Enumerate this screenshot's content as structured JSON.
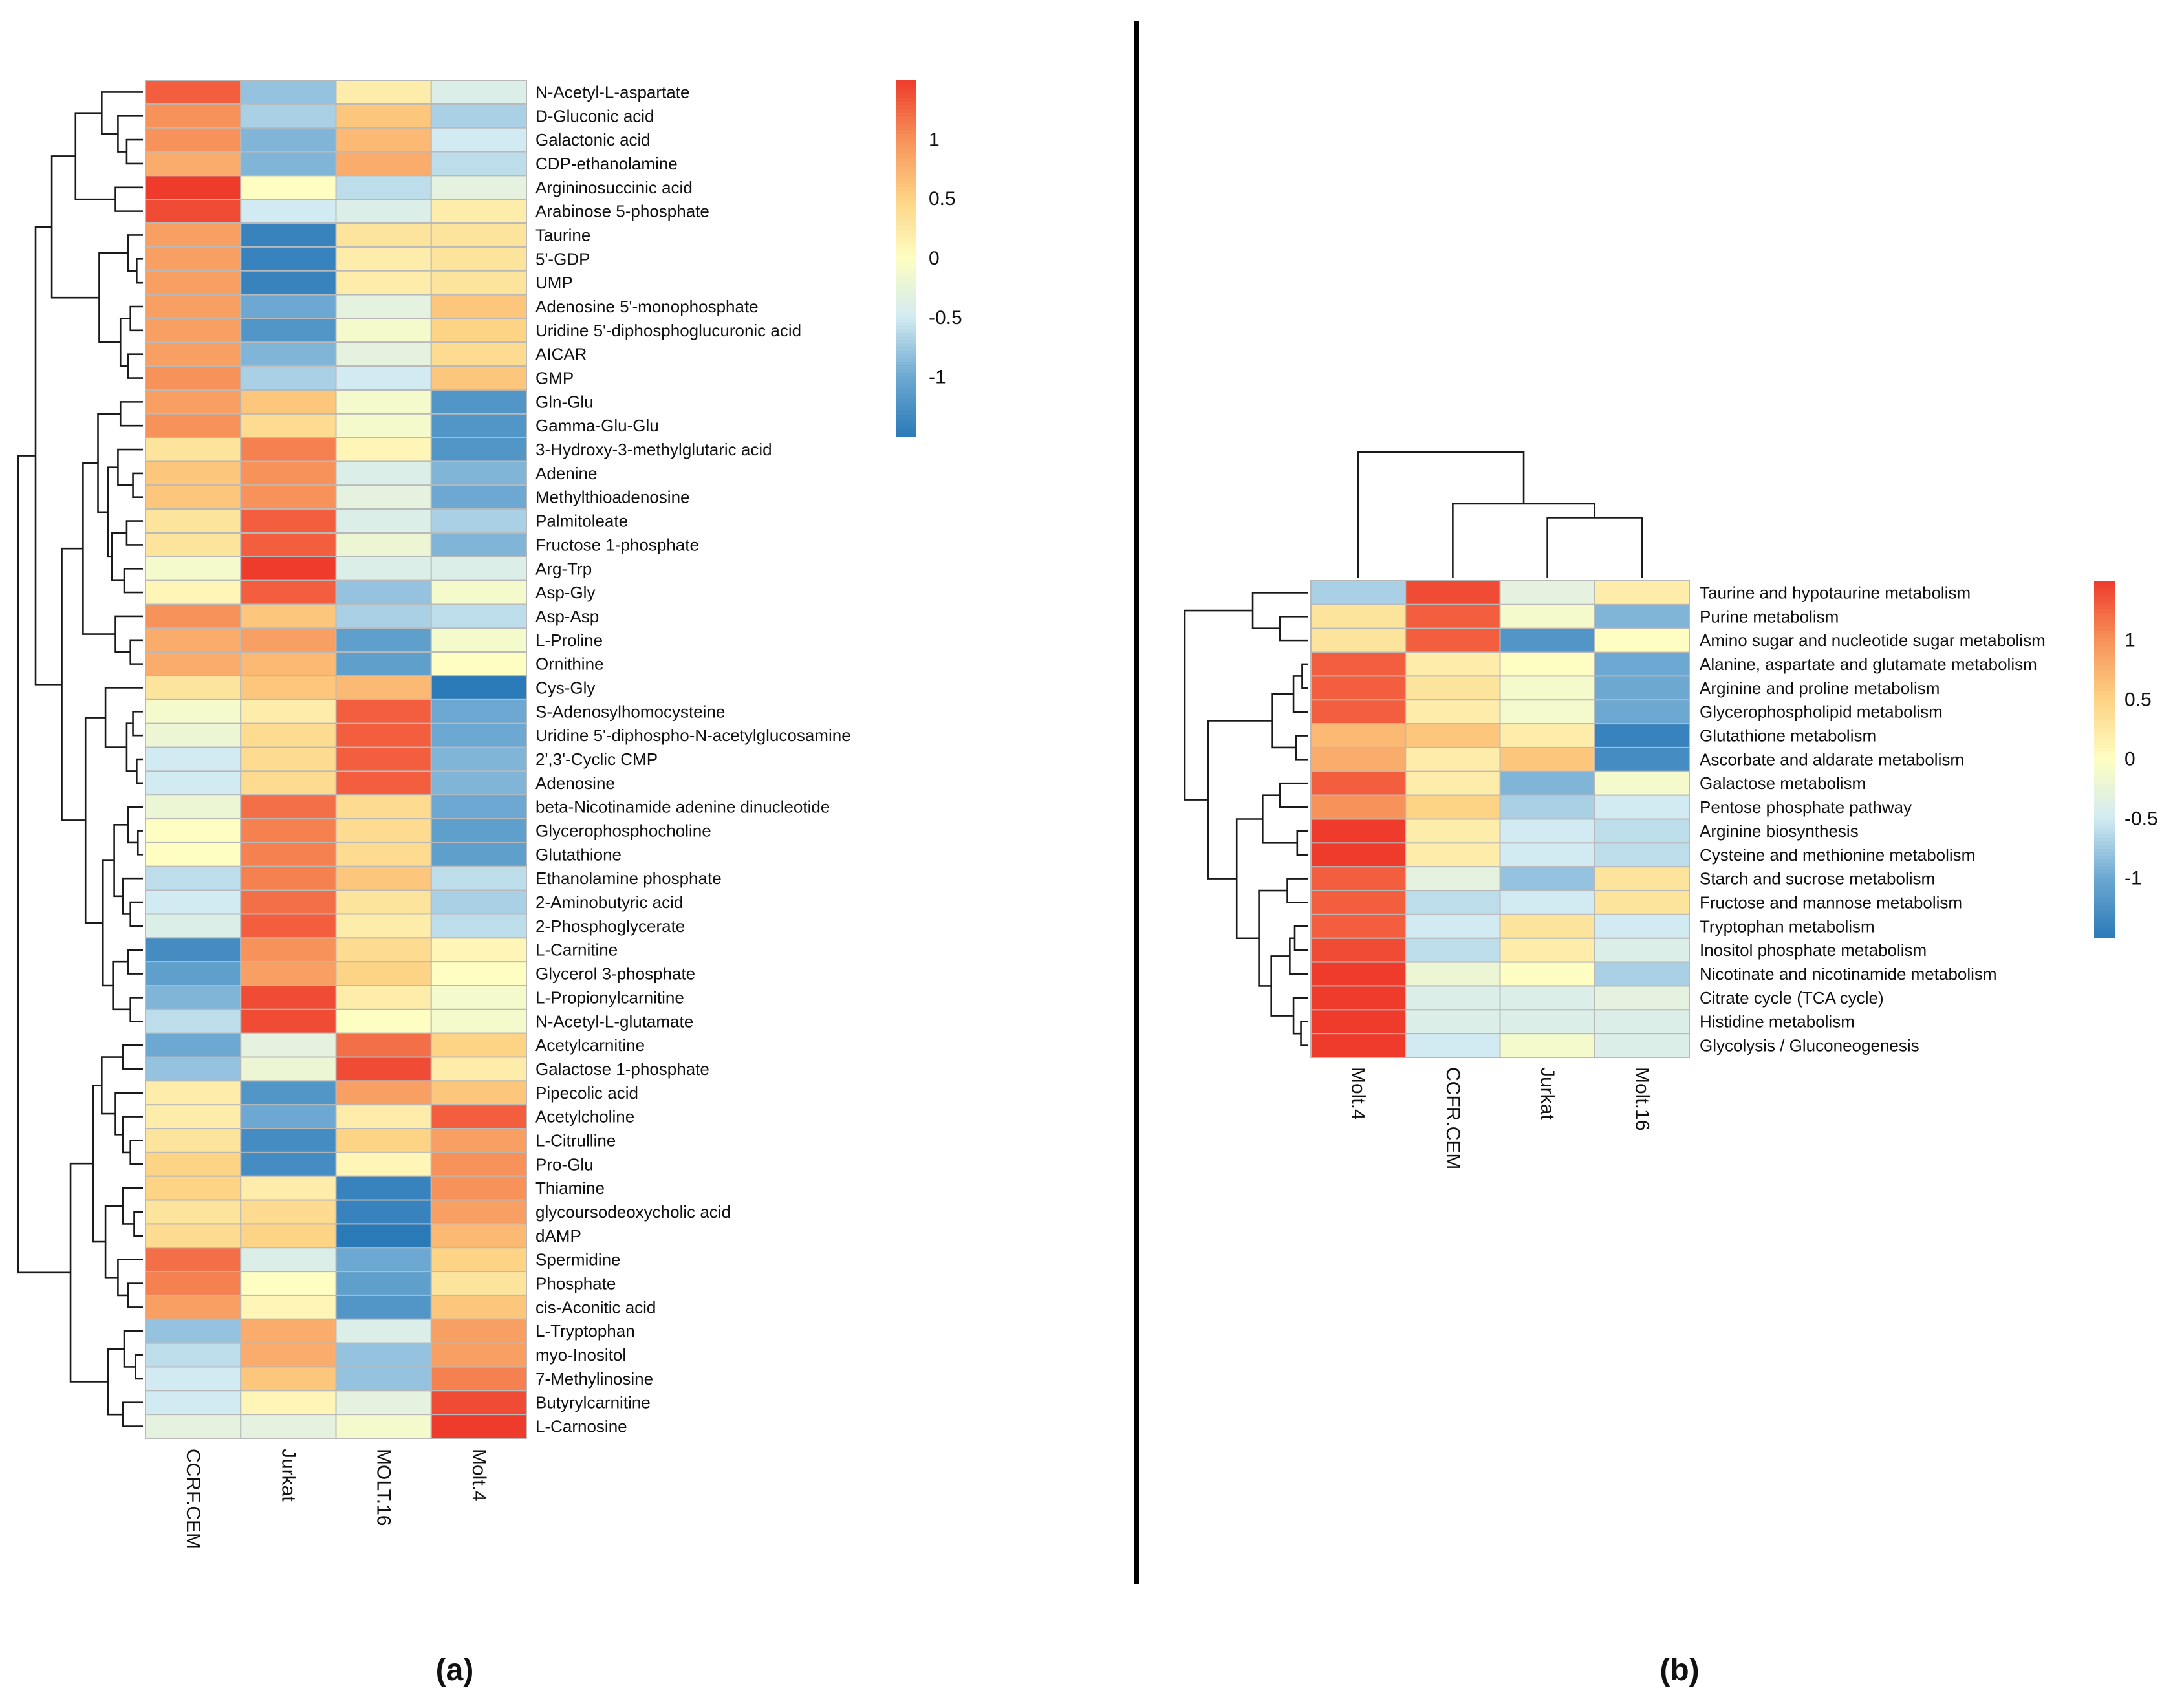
{
  "chart_data": [
    {
      "type": "heatmap",
      "panel_label": "(a)",
      "columns": [
        "CCRF.CEM",
        "Jurkat",
        "MOLT.16",
        "Molt.4"
      ],
      "rows": [
        "N-Acetyl-L-aspartate",
        "D-Gluconic acid",
        "Galactonic acid",
        "CDP-ethanolamine",
        "Argininosuccinic acid",
        "Arabinose 5-phosphate",
        "Taurine",
        "5'-GDP",
        "UMP",
        "Adenosine 5'-monophosphate",
        "Uridine 5'-diphosphoglucuronic acid",
        "AICAR",
        "GMP",
        "Gln-Glu",
        "Gamma-Glu-Glu",
        "3-Hydroxy-3-methylglutaric acid",
        "Adenine",
        "Methylthioadenosine",
        "Palmitoleate",
        "Fructose 1-phosphate",
        "Arg-Trp",
        "Asp-Gly",
        "Asp-Asp",
        "L-Proline",
        "Ornithine",
        "Cys-Gly",
        "S-Adenosylhomocysteine",
        "Uridine 5'-diphospho-N-acetylglucosamine",
        "2',3'-Cyclic CMP",
        "Adenosine",
        "beta-Nicotinamide adenine dinucleotide",
        "Glycerophosphocholine",
        "Glutathione",
        "Ethanolamine phosphate",
        "2-Aminobutyric acid",
        "2-Phosphoglycerate",
        "L-Carnitine",
        "Glycerol 3-phosphate",
        "L-Propionylcarnitine",
        "N-Acetyl-L-glutamate",
        "Acetylcarnitine",
        "Galactose 1-phosphate",
        "Pipecolic acid",
        "Acetylcholine",
        "L-Citrulline",
        "Pro-Glu",
        "Thiamine",
        "glycoursodeoxycholic acid",
        "dAMP",
        "Spermidine",
        "Phosphate",
        "cis-Aconitic acid",
        "L-Tryptophan",
        "myo-Inositol",
        "7-Methylinosine",
        "Butyrylcarnitine",
        "L-Carnosine"
      ],
      "values": [
        [
          1.3,
          -0.8,
          0.2,
          -0.4
        ],
        [
          1.0,
          -0.7,
          0.6,
          -0.7
        ],
        [
          1.0,
          -0.9,
          0.7,
          -0.5
        ],
        [
          0.8,
          -0.9,
          0.8,
          -0.6
        ],
        [
          1.5,
          0.0,
          -0.6,
          -0.3
        ],
        [
          1.4,
          -0.5,
          -0.4,
          0.2
        ],
        [
          0.9,
          -1.4,
          0.3,
          0.3
        ],
        [
          0.9,
          -1.4,
          0.2,
          0.3
        ],
        [
          0.9,
          -1.4,
          0.2,
          0.3
        ],
        [
          0.9,
          -1.0,
          -0.3,
          0.6
        ],
        [
          0.9,
          -1.2,
          -0.1,
          0.5
        ],
        [
          0.9,
          -0.9,
          -0.3,
          0.4
        ],
        [
          1.0,
          -0.7,
          -0.5,
          0.6
        ],
        [
          0.9,
          0.6,
          -0.1,
          -1.2
        ],
        [
          1.0,
          0.4,
          -0.1,
          -1.2
        ],
        [
          0.3,
          1.1,
          0.1,
          -1.2
        ],
        [
          0.6,
          1.0,
          -0.4,
          -0.9
        ],
        [
          0.6,
          1.0,
          -0.3,
          -1.0
        ],
        [
          0.3,
          1.3,
          -0.4,
          -0.7
        ],
        [
          0.3,
          1.3,
          -0.2,
          -0.9
        ],
        [
          -0.1,
          1.5,
          -0.4,
          -0.4
        ],
        [
          0.1,
          1.3,
          -0.8,
          -0.1
        ],
        [
          1.0,
          0.6,
          -0.7,
          -0.6
        ],
        [
          0.8,
          0.9,
          -1.1,
          -0.1
        ],
        [
          0.8,
          0.7,
          -1.1,
          0.0
        ],
        [
          0.3,
          0.6,
          0.7,
          -1.5
        ],
        [
          -0.1,
          0.2,
          1.3,
          -1.0
        ],
        [
          -0.2,
          0.4,
          1.3,
          -1.0
        ],
        [
          -0.5,
          0.4,
          1.3,
          -0.9
        ],
        [
          -0.5,
          0.4,
          1.3,
          -0.9
        ],
        [
          -0.2,
          1.2,
          0.4,
          -1.0
        ],
        [
          0.0,
          1.1,
          0.4,
          -1.1
        ],
        [
          0.0,
          1.1,
          0.4,
          -1.1
        ],
        [
          -0.6,
          1.1,
          0.6,
          -0.6
        ],
        [
          -0.5,
          1.2,
          0.3,
          -0.7
        ],
        [
          -0.4,
          1.3,
          0.2,
          -0.6
        ],
        [
          -1.3,
          1.0,
          0.4,
          0.1
        ],
        [
          -1.1,
          0.9,
          0.5,
          0.0
        ],
        [
          -0.9,
          1.4,
          0.2,
          -0.1
        ],
        [
          -0.6,
          1.4,
          0.0,
          -0.1
        ],
        [
          -1.0,
          -0.3,
          1.2,
          0.5
        ],
        [
          -0.8,
          -0.2,
          1.4,
          0.2
        ],
        [
          0.2,
          -1.2,
          0.9,
          0.6
        ],
        [
          0.2,
          -1.0,
          0.2,
          1.3
        ],
        [
          0.3,
          -1.3,
          0.5,
          0.9
        ],
        [
          0.5,
          -1.3,
          0.1,
          1.0
        ],
        [
          0.5,
          0.2,
          -1.4,
          1.0
        ],
        [
          0.3,
          0.4,
          -1.4,
          0.9
        ],
        [
          0.4,
          0.5,
          -1.5,
          0.7
        ],
        [
          1.2,
          -0.4,
          -1.0,
          0.5
        ],
        [
          1.1,
          0.0,
          -1.1,
          0.3
        ],
        [
          0.9,
          0.1,
          -1.2,
          0.6
        ],
        [
          -0.8,
          0.8,
          -0.4,
          0.9
        ],
        [
          -0.6,
          0.8,
          -0.8,
          0.9
        ],
        [
          -0.5,
          0.6,
          -0.8,
          1.1
        ],
        [
          -0.5,
          0.1,
          -0.3,
          1.4
        ],
        [
          -0.3,
          -0.3,
          -0.1,
          1.5
        ]
      ],
      "row_dendrogram": [
        10,
        [
          8.6,
          [
            7.3,
            [
              5.4,
              [
                3.3,
                0,
                [
                  2.0,
                  1,
                  [
                    1.3,
                    2,
                    3
                  ]
                ]
              ],
              [
                2.2,
                4,
                5
              ]
            ],
            [
              3.5,
              [
                1.2,
                6,
                [
                  0.5,
                  7,
                  8
                ]
              ],
              [
                1.8,
                [
                  1.0,
                  9,
                  10
                ],
                [
                  1.2,
                  11,
                  12
                ]
              ]
            ]
          ],
          [
            6.5,
            [
              4.8,
              [
                3.6,
                [
                  1.8,
                  13,
                  14
                ],
                [
                  2.8,
                  [
                    2.0,
                    15,
                    [
                      0.8,
                      16,
                      17
                    ]
                  ],
                  [
                    2.5,
                    [
                      1.3,
                      18,
                      19
                    ],
                    [
                      1.5,
                      20,
                      21
                    ]
                  ]
                ]
              ],
              [
                2.2,
                22,
                [
                  1.0,
                  23,
                  24
                ]
              ]
            ],
            [
              4.6,
              [
                3.0,
                25,
                [
                  1.3,
                  [
                    0.8,
                    26,
                    27
                  ],
                  [
                    0.5,
                    28,
                    29
                  ]
                ]
              ],
              [
                3.2,
                [
                  2.3,
                  [
                    1.2,
                    30,
                    [
                      0.4,
                      31,
                      32
                    ]
                  ],
                  [
                    1.6,
                    33,
                    [
                      1.0,
                      34,
                      35
                    ]
                  ]
                ],
                [
                  2.4,
                  [
                    1.2,
                    36,
                    37
                  ],
                  [
                    1.0,
                    38,
                    39
                  ]
                ]
              ]
            ]
          ]
        ],
        [
          5.8,
          [
            4.0,
            [
              3.3,
              [
                1.6,
                40,
                41
              ],
              [
                2.2,
                42,
                [
                  1.6,
                  43,
                  [
                    1.0,
                    44,
                    45
                  ]
                ]
              ]
            ],
            [
              3.0,
              [
                1.6,
                46,
                [
                  0.7,
                  47,
                  48
                ]
              ],
              [
                2.0,
                49,
                [
                  1.2,
                  50,
                  51
                ]
              ]
            ]
          ],
          [
            2.8,
            [
              1.5,
              52,
              [
                0.6,
                53,
                54
              ]
            ],
            [
              1.6,
              55,
              56
            ]
          ]
        ]
      ],
      "legend": {
        "ticks": [
          1,
          0.5,
          0,
          -0.5,
          -1
        ],
        "range": [
          -1.5,
          1.5
        ]
      },
      "colors": [
        "#2B7AB8",
        "#6CA8D1",
        "#D2EAF2",
        "#FEFEC2",
        "#FDD385",
        "#F7925A",
        "#EE3B2C"
      ]
    },
    {
      "type": "heatmap",
      "panel_label": "(b)",
      "columns": [
        "Molt.4",
        "CCFR.CEM",
        "Jurkat",
        "Molt.16"
      ],
      "rows": [
        "Taurine and hypotaurine metabolism",
        "Purine metabolism",
        "Amino sugar and nucleotide sugar metabolism",
        "Alanine, aspartate and glutamate metabolism",
        "Arginine and proline metabolism",
        "Glycerophospholipid metabolism",
        "Glutathione metabolism",
        "Ascorbate and aldarate metabolism",
        "Galactose metabolism",
        "Pentose phosphate pathway",
        "Arginine biosynthesis",
        "Cysteine and methionine metabolism",
        "Starch and sucrose metabolism",
        "Fructose and mannose metabolism",
        "Tryptophan metabolism",
        "Inositol phosphate metabolism",
        "Nicotinate and nicotinamide metabolism",
        "Citrate cycle (TCA cycle)",
        "Histidine metabolism",
        "Glycolysis / Gluconeogenesis"
      ],
      "values": [
        [
          -0.7,
          1.4,
          -0.3,
          0.2
        ],
        [
          0.3,
          1.3,
          -0.1,
          -0.9
        ],
        [
          0.3,
          1.3,
          -1.2,
          0.0
        ],
        [
          1.3,
          0.2,
          0.0,
          -1.0
        ],
        [
          1.3,
          0.3,
          -0.1,
          -1.0
        ],
        [
          1.3,
          0.2,
          -0.1,
          -1.0
        ],
        [
          0.7,
          0.6,
          0.2,
          -1.4
        ],
        [
          0.8,
          0.2,
          0.6,
          -1.3
        ],
        [
          1.3,
          0.2,
          -0.9,
          -0.1
        ],
        [
          1.0,
          0.5,
          -0.7,
          -0.5
        ],
        [
          1.5,
          0.2,
          -0.5,
          -0.6
        ],
        [
          1.5,
          0.2,
          -0.5,
          -0.6
        ],
        [
          1.3,
          -0.3,
          -0.8,
          0.3
        ],
        [
          1.3,
          -0.6,
          -0.5,
          0.3
        ],
        [
          1.3,
          -0.5,
          0.3,
          -0.5
        ],
        [
          1.4,
          -0.6,
          0.2,
          -0.4
        ],
        [
          1.5,
          -0.2,
          0.0,
          -0.7
        ],
        [
          1.5,
          -0.4,
          -0.4,
          -0.3
        ],
        [
          1.5,
          -0.4,
          -0.4,
          -0.4
        ],
        [
          1.5,
          -0.5,
          -0.1,
          -0.4
        ]
      ],
      "row_dendrogram": [
        10,
        [
          4.5,
          0,
          [
            2.3,
            1,
            2
          ]
        ],
        [
          8.1,
          [
            2.9,
            [
              1.2,
              [
                0.5,
                3,
                4
              ],
              5
            ],
            [
              1.0,
              6,
              7
            ]
          ],
          [
            5.8,
            [
              3.7,
              [
                2.3,
                8,
                9
              ],
              [
                0.9,
                10,
                11
              ]
            ],
            [
              4.0,
              [
                1.7,
                12,
                13
              ],
              [
                3.0,
                [
                  1.5,
                  [
                    1.1,
                    14,
                    15
                  ],
                  16
                ],
                [
                  1.2,
                  17,
                  [
                    0.6,
                    18,
                    19
                  ]
                ]
              ]
            ]
          ]
        ]
      ],
      "col_dendrogram": [
        10,
        0,
        [
          5.9,
          1,
          [
            4.8,
            2,
            3
          ]
        ]
      ],
      "legend": {
        "ticks": [
          1,
          0.5,
          0,
          -0.5,
          -1
        ],
        "range": [
          -1.5,
          1.5
        ]
      },
      "colors": [
        "#2B7AB8",
        "#6CA8D1",
        "#D2EAF2",
        "#FEFEC2",
        "#FDD385",
        "#F7925A",
        "#EE3B2C"
      ]
    }
  ]
}
